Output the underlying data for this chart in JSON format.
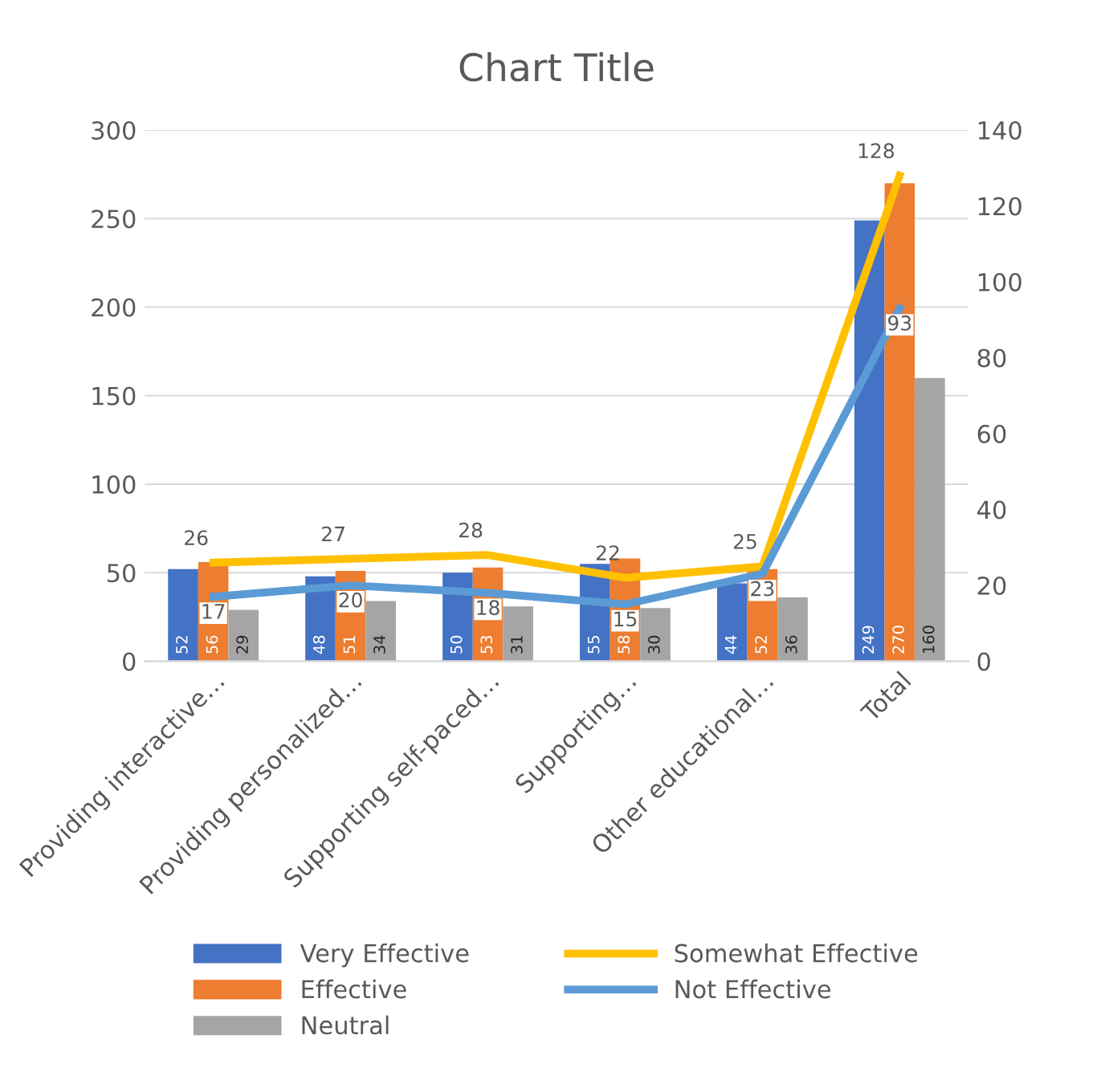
{
  "chart_data": {
    "type": "bar",
    "title": "Chart Title",
    "categories": [
      "Providing interactive…",
      "Providing personalized…",
      "Supporting self-paced…",
      "Supporting…",
      "Other educational…",
      "Total"
    ],
    "series": [
      {
        "name": "Very Effective",
        "color": "#4472c4",
        "values": [
          52,
          48,
          50,
          55,
          44,
          249
        ]
      },
      {
        "name": "Effective",
        "color": "#ed7d31",
        "values": [
          56,
          51,
          53,
          58,
          52,
          270
        ]
      },
      {
        "name": "Neutral",
        "color": "#a5a5a5",
        "values": [
          29,
          34,
          31,
          30,
          36,
          160
        ]
      },
      {
        "name": "Somewhat Effective",
        "type": "line",
        "axis": "y2",
        "color": "#ffc000",
        "values": [
          26,
          27,
          28,
          22,
          25,
          128
        ]
      },
      {
        "name": "Not Effective",
        "type": "line",
        "axis": "y2",
        "color": "#5b9bd5",
        "values": [
          17,
          20,
          18,
          15,
          23,
          93
        ]
      }
    ],
    "ylim": [
      0,
      300
    ],
    "yticks": [
      0,
      50,
      100,
      150,
      200,
      250,
      300
    ],
    "y2lim": [
      0,
      140
    ],
    "y2ticks": [
      0,
      20,
      40,
      60,
      80,
      100,
      120,
      140
    ],
    "grid": "y",
    "legend": "bottom",
    "data_labels": true,
    "marker": "none",
    "line_style": "solid"
  }
}
